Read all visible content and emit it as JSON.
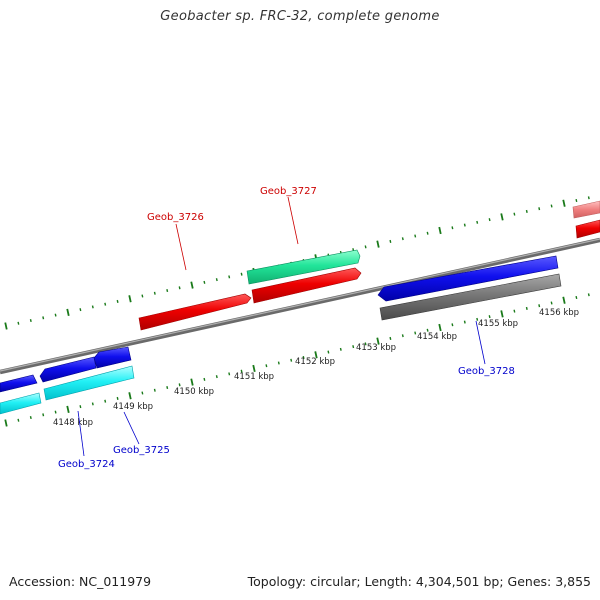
{
  "title": "Geobacter sp. FRC-32, complete genome",
  "footer": {
    "accession": "Accession: NC_011979",
    "summary": "Topology: circular; Length: 4,304,501 bp; Genes: 3,855"
  },
  "colors": {
    "backbone": "#8a8a8a",
    "tick": "#1a7a1a",
    "label_forward": "#cc0000",
    "label_reverse": "#0000cc"
  },
  "scale_labels": [
    "4148 kbp",
    "4149 kbp",
    "4150 kbp",
    "4151 kbp",
    "4152 kbp",
    "4153 kbp",
    "4154 kbp",
    "4155 kbp",
    "4156 kbp"
  ],
  "gene_labels": {
    "g3724": "Geob_3724",
    "g3725": "Geob_3725",
    "g3726": "Geob_3726",
    "g3727": "Geob_3727",
    "g3728": "Geob_3728"
  }
}
